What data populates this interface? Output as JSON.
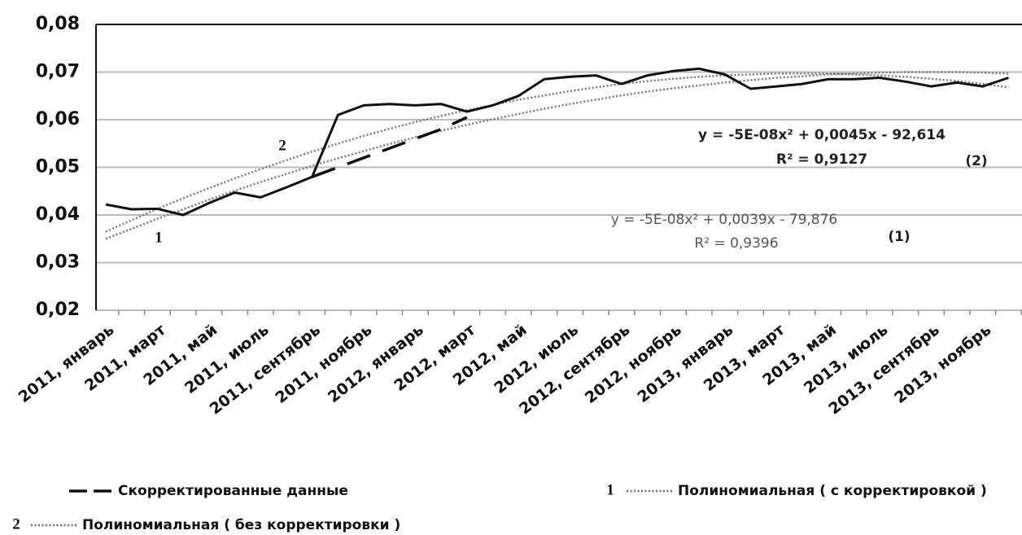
{
  "chart_data": {
    "type": "line",
    "categories": [
      "2011, январь",
      null,
      "2011, март",
      null,
      "2011, май",
      null,
      "2011, июль",
      null,
      "2011, сентябрь",
      null,
      "2011, ноябрь",
      null,
      "2012, январь",
      null,
      "2012, март",
      null,
      "2012, май",
      null,
      "2012, июль",
      null,
      "2012, сентябрь",
      null,
      "2012, ноябрь",
      null,
      "2013, январь",
      null,
      "2013, март",
      null,
      "2013, май",
      null,
      "2013, июль",
      null,
      "2013, сентябрь",
      null,
      "2013, ноябрь",
      null
    ],
    "series": [
      {
        "color": "#111111",
        "style": "solid",
        "values": [
          0.0422,
          0.0412,
          0.0413,
          0.04,
          0.0425,
          0.0447,
          0.0437,
          0.0458,
          0.048,
          0.061,
          0.063,
          0.0633,
          0.063,
          0.0633,
          0.0617,
          0.063,
          0.065,
          0.0685,
          0.069,
          0.0693,
          0.0675,
          0.0693,
          0.0702,
          0.0707,
          0.0695,
          0.0665,
          0.067,
          0.0675,
          0.0685,
          0.0685,
          0.0688,
          0.068,
          0.067,
          0.0678,
          0.067,
          0.0688
        ]
      },
      {
        "name": "Скорректированные данные",
        "color": "#111111",
        "style": "dashed",
        "values": [
          null,
          null,
          null,
          null,
          null,
          null,
          null,
          null,
          0.048,
          0.05,
          0.052,
          0.054,
          0.056,
          0.058,
          0.0605,
          null,
          null,
          null,
          null,
          null,
          null,
          null,
          null,
          null,
          null,
          null,
          null,
          null,
          null,
          null,
          null,
          null,
          null,
          null,
          null,
          null
        ]
      },
      {
        "name": "Полиномиальная ( с корректировкой )",
        "label": "1",
        "color": "#777777",
        "style": "dotted",
        "values": [
          0.035,
          0.0371,
          0.0392,
          0.0412,
          0.0432,
          0.0451,
          0.0469,
          0.0486,
          0.0503,
          0.0519,
          0.0534,
          0.0549,
          0.0563,
          0.0577,
          0.0589,
          0.0601,
          0.0612,
          0.0623,
          0.0633,
          0.0642,
          0.0651,
          0.0659,
          0.0666,
          0.0672,
          0.0678,
          0.0683,
          0.0688,
          0.0691,
          0.0695,
          0.0697,
          0.0699,
          0.07,
          0.07,
          0.07,
          0.0699,
          0.0697
        ]
      },
      {
        "name": "Полиномиальная ( без корректировки )",
        "label": "2",
        "color": "#777777",
        "style": "dotted",
        "values": [
          0.0365,
          0.0389,
          0.0413,
          0.0435,
          0.0456,
          0.0477,
          0.0496,
          0.0515,
          0.0533,
          0.055,
          0.0566,
          0.0581,
          0.0595,
          0.0608,
          0.062,
          0.0631,
          0.0642,
          0.0651,
          0.066,
          0.0668,
          0.0675,
          0.0681,
          0.0686,
          0.069,
          0.0693,
          0.0695,
          0.0697,
          0.0697,
          0.0697,
          0.0695,
          0.0693,
          0.069,
          0.0686,
          0.0681,
          0.0675,
          0.0668
        ]
      }
    ],
    "annotations": [
      "y = -5E-08x² + 0,0045x - 92,614",
      "R² = 0,9127",
      "(2)",
      "y = -5E-08x² + 0,0039x - 79,876",
      "R² = 0,9396",
      "(1)",
      "1",
      "2"
    ],
    "ylim": [
      0.02,
      0.08
    ],
    "yticks": [
      {
        "value": 0.02,
        "label": "0,02"
      },
      {
        "value": 0.03,
        "label": "0,03"
      },
      {
        "value": 0.04,
        "label": "0,04"
      },
      {
        "value": 0.05,
        "label": "0,05"
      },
      {
        "value": 0.06,
        "label": "0,06"
      },
      {
        "value": 0.07,
        "label": "0,07"
      },
      {
        "value": 0.08,
        "label": "0,08"
      }
    ],
    "grid": true
  }
}
